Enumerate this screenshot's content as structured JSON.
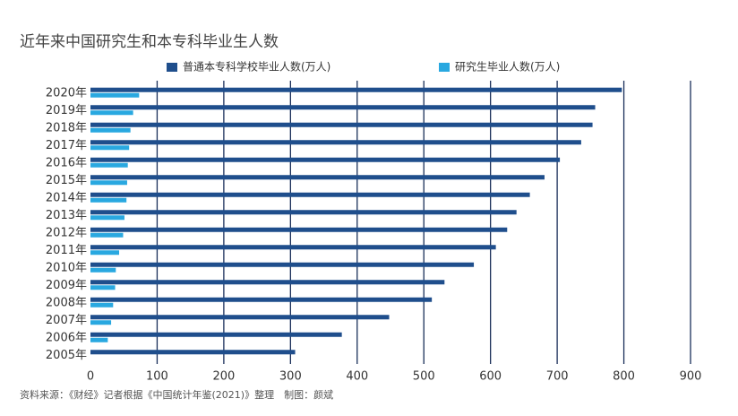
{
  "chart_data": {
    "type": "bar",
    "orientation": "horizontal",
    "title": "近年来中国研究生和本专科毕业生人数",
    "categories": [
      "2020年",
      "2019年",
      "2018年",
      "2017年",
      "2016年",
      "2015年",
      "2014年",
      "2013年",
      "2012年",
      "2011年",
      "2010年",
      "2009年",
      "2008年",
      "2007年",
      "2006年",
      "2005年"
    ],
    "series": [
      {
        "name": "普通本专科学校毕业人数(万人)",
        "color": "#1f4e8c",
        "values": [
          797,
          757,
          753,
          736,
          704,
          681,
          659,
          639,
          625,
          608,
          575,
          531,
          512,
          448,
          377,
          307
        ]
      },
      {
        "name": "研究生毕业人数(万人)",
        "color": "#29a8e0",
        "values": [
          73,
          64,
          60,
          58,
          56,
          55,
          54,
          51,
          49,
          43,
          38,
          37,
          34,
          31,
          26,
          null
        ]
      }
    ],
    "xlim": [
      0,
      900
    ],
    "xticks": [
      0,
      100,
      200,
      300,
      400,
      500,
      600,
      700,
      800,
      900
    ],
    "grid": true,
    "source": "资料来源：《财经》记者根据《中国统计年鉴(2021)》整理　制图：颜斌"
  }
}
